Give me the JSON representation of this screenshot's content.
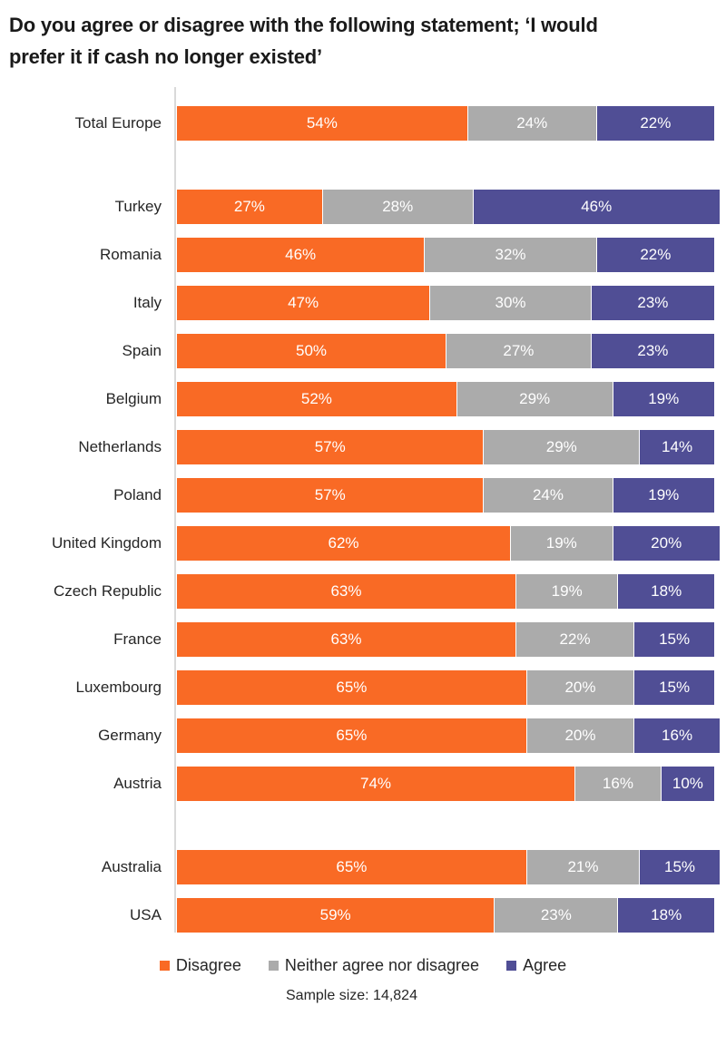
{
  "header": {
    "title_line1": "Do you agree or disagree with the following statement; ‘I would",
    "title_line2": "prefer it if cash no longer existed’"
  },
  "chart_data": {
    "type": "bar",
    "variant": "horizontal-stacked",
    "unit": "%",
    "xlim": [
      0,
      100
    ],
    "grid": false,
    "legend_position": "bottom",
    "series_keys": [
      "disagree",
      "neither",
      "agree"
    ],
    "colors": {
      "disagree": "#F96A25",
      "neither": "#ABABAB",
      "agree": "#504E95",
      "axis": "#D9D9D9",
      "title_text": "#1A1A1A",
      "label_text": "#262626",
      "value_text": "#FFFFFF"
    },
    "rows": [
      {
        "label": "Total Europe",
        "values": [
          54,
          24,
          22
        ],
        "gap_before": false
      },
      {
        "label": "Turkey",
        "values": [
          27,
          28,
          46
        ],
        "gap_before": true
      },
      {
        "label": "Romania",
        "values": [
          46,
          32,
          22
        ],
        "gap_before": false
      },
      {
        "label": "Italy",
        "values": [
          47,
          30,
          23
        ],
        "gap_before": false
      },
      {
        "label": "Spain",
        "values": [
          50,
          27,
          23
        ],
        "gap_before": false
      },
      {
        "label": "Belgium",
        "values": [
          52,
          29,
          19
        ],
        "gap_before": false
      },
      {
        "label": "Netherlands",
        "values": [
          57,
          29,
          14
        ],
        "gap_before": false
      },
      {
        "label": "Poland",
        "values": [
          57,
          24,
          19
        ],
        "gap_before": false
      },
      {
        "label": "United Kingdom",
        "values": [
          62,
          19,
          20
        ],
        "gap_before": false
      },
      {
        "label": "Czech Republic",
        "values": [
          63,
          19,
          18
        ],
        "gap_before": false
      },
      {
        "label": "France",
        "values": [
          63,
          22,
          15
        ],
        "gap_before": false
      },
      {
        "label": "Luxembourg",
        "values": [
          65,
          20,
          15
        ],
        "gap_before": false
      },
      {
        "label": "Germany",
        "values": [
          65,
          20,
          16
        ],
        "gap_before": false
      },
      {
        "label": "Austria",
        "values": [
          74,
          16,
          10
        ],
        "gap_before": false
      },
      {
        "label": "Australia",
        "values": [
          65,
          21,
          15
        ],
        "gap_before": true
      },
      {
        "label": "USA",
        "values": [
          59,
          23,
          18
        ],
        "gap_before": false
      }
    ],
    "legend": [
      {
        "key": "disagree",
        "label": "Disagree"
      },
      {
        "key": "neither",
        "label": "Neither agree nor disagree"
      },
      {
        "key": "agree",
        "label": "Agree"
      }
    ],
    "footnote": "Sample size: 14,824"
  }
}
